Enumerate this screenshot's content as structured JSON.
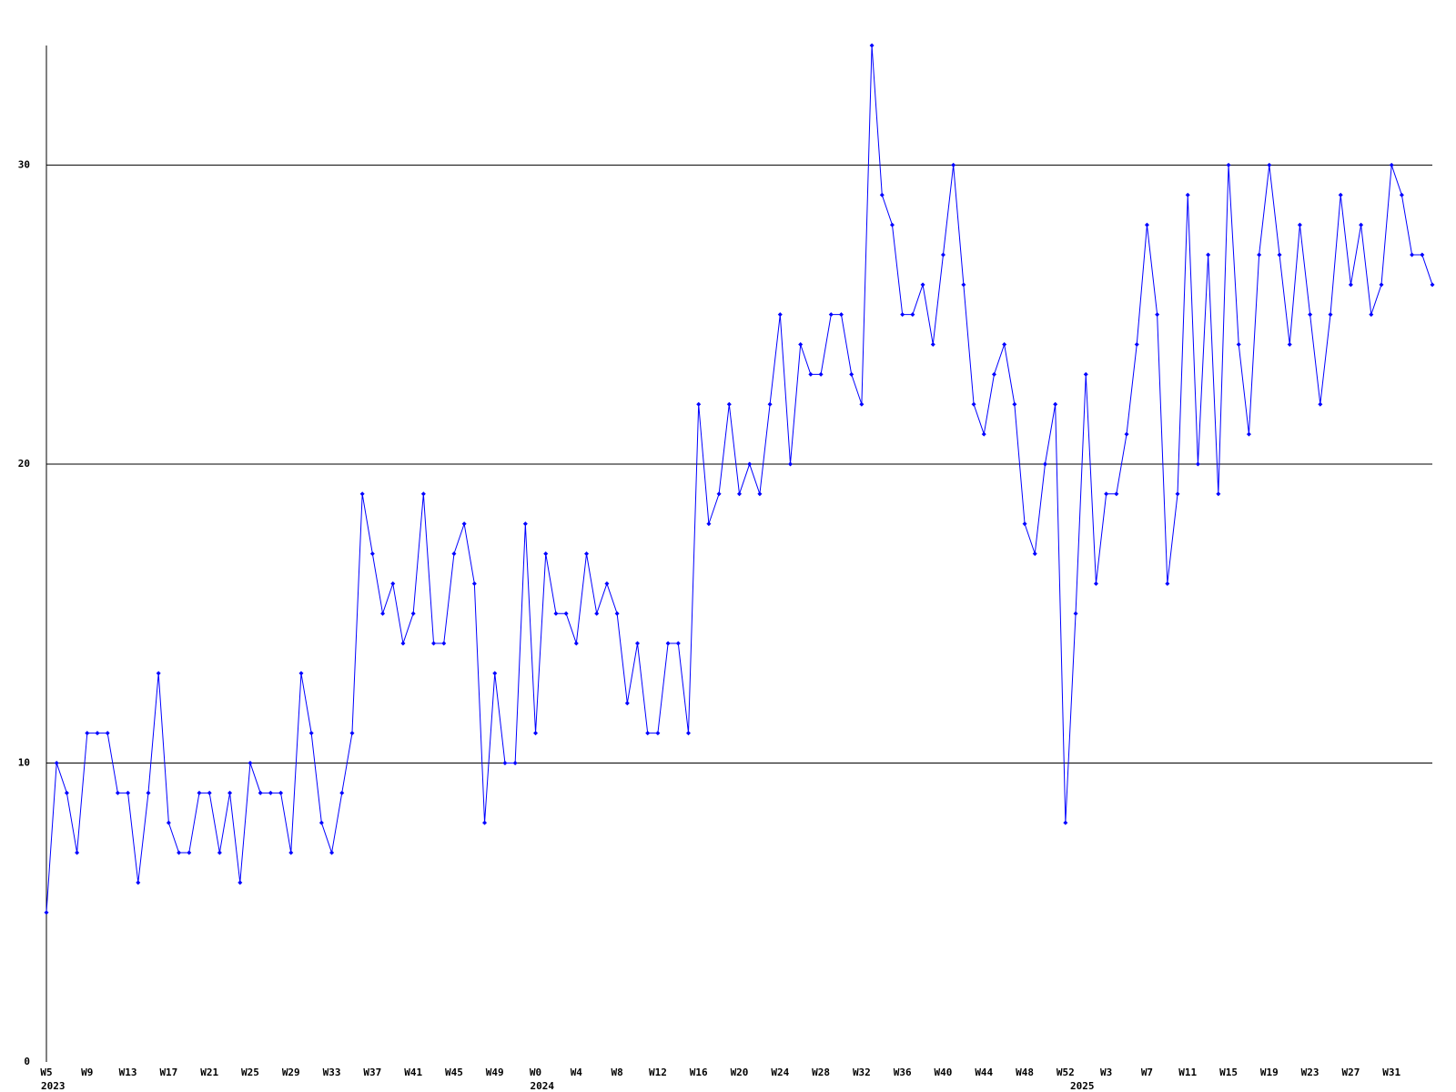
{
  "chart_data": {
    "type": "line",
    "categories": [
      "W5",
      null,
      null,
      null,
      "W9",
      null,
      null,
      null,
      "W13",
      null,
      null,
      null,
      "W17",
      null,
      null,
      null,
      "W21",
      null,
      null,
      null,
      "W25",
      null,
      null,
      null,
      "W29",
      null,
      null,
      null,
      "W33",
      null,
      null,
      null,
      "W37",
      null,
      null,
      null,
      "W41",
      null,
      null,
      null,
      "W45",
      null,
      null,
      null,
      "W49",
      null,
      null,
      null,
      "W0",
      null,
      null,
      null,
      "W4",
      null,
      null,
      null,
      "W8",
      null,
      null,
      null,
      "W12",
      null,
      null,
      null,
      "W16",
      null,
      null,
      null,
      "W20",
      null,
      null,
      null,
      "W24",
      null,
      null,
      null,
      "W28",
      null,
      null,
      null,
      "W32",
      null,
      null,
      null,
      "W36",
      null,
      null,
      null,
      "W40",
      null,
      null,
      null,
      "W44",
      null,
      null,
      null,
      "W48",
      null,
      null,
      null,
      "W52",
      null,
      null,
      null,
      "W3",
      null,
      null,
      null,
      "W7",
      null,
      null,
      null,
      "W11",
      null,
      null,
      null,
      "W15",
      null,
      null,
      null,
      "W19",
      null,
      null,
      null,
      "W23",
      null,
      null,
      null,
      "W27",
      null,
      null,
      null,
      "W31",
      null,
      null,
      null,
      null
    ],
    "category_years": [
      "2023",
      null,
      null,
      null,
      null,
      null,
      null,
      null,
      null,
      null,
      null,
      null,
      null,
      null,
      null,
      null,
      null,
      null,
      null,
      null,
      null,
      null,
      null,
      null,
      null,
      null,
      null,
      null,
      null,
      null,
      null,
      null,
      null,
      null,
      null,
      null,
      null,
      null,
      null,
      null,
      null,
      null,
      null,
      null,
      null,
      null,
      null,
      null,
      "2024",
      null,
      null,
      null,
      null,
      null,
      null,
      null,
      null,
      null,
      null,
      null,
      null,
      null,
      null,
      null,
      null,
      null,
      null,
      null,
      null,
      null,
      null,
      null,
      null,
      null,
      null,
      null,
      null,
      null,
      null,
      null,
      null,
      null,
      null,
      null,
      null,
      null,
      null,
      null,
      null,
      null,
      null,
      null,
      null,
      null,
      null,
      null,
      null,
      null,
      null,
      null,
      null,
      "2025",
      null,
      null,
      null,
      null,
      null,
      null,
      null,
      null,
      null,
      null,
      null,
      null,
      null,
      null,
      null,
      null,
      null,
      null,
      null,
      null,
      null,
      null,
      null,
      null,
      null,
      null,
      null,
      null,
      null,
      null,
      null,
      null,
      null,
      null,
      null
    ],
    "series": [
      {
        "color": "#0000ff",
        "values": [
          5,
          10,
          9,
          7,
          11,
          11,
          11,
          9,
          9,
          6,
          9,
          13,
          8,
          7,
          7,
          9,
          9,
          7,
          9,
          6,
          10,
          9,
          9,
          9,
          7,
          13,
          11,
          8,
          7,
          9,
          11,
          19,
          17,
          15,
          16,
          14,
          15,
          19,
          14,
          14,
          17,
          18,
          16,
          8,
          13,
          10,
          10,
          18,
          11,
          17,
          15,
          15,
          14,
          17,
          15,
          16,
          15,
          12,
          14,
          11,
          11,
          14,
          14,
          11,
          22,
          18,
          19,
          22,
          19,
          20,
          19,
          22,
          25,
          20,
          24,
          23,
          23,
          25,
          25,
          23,
          22,
          34,
          29,
          28,
          25,
          25,
          26,
          24,
          27,
          30,
          26,
          22,
          21,
          23,
          24,
          22,
          18,
          17,
          20,
          22,
          8,
          15,
          23,
          16,
          19,
          19,
          21,
          24,
          28,
          25,
          16,
          19,
          29,
          20,
          27,
          19,
          30,
          24,
          21,
          27,
          30,
          27,
          24,
          28,
          25,
          22,
          25,
          29,
          26,
          28,
          25,
          26,
          30,
          29,
          27,
          27,
          26
        ]
      }
    ],
    "ylim": [
      0,
      34
    ],
    "yticks": [
      0,
      10,
      20,
      30
    ],
    "grid": true
  }
}
